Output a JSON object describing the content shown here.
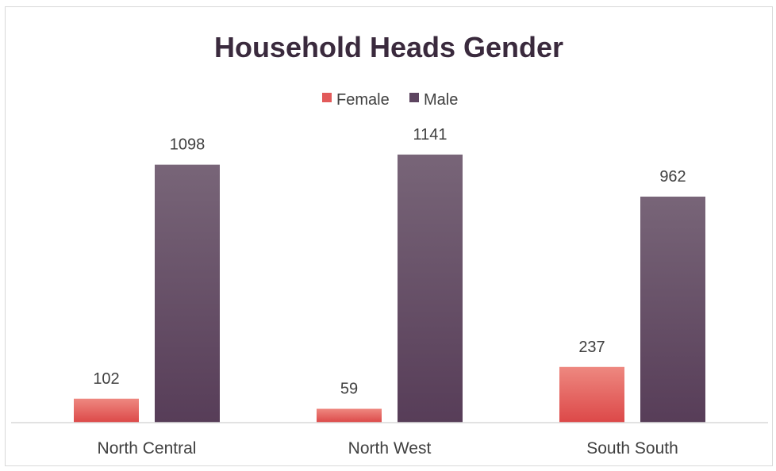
{
  "chart_data": {
    "type": "bar",
    "title": "Household Heads Gender",
    "categories": [
      "North Central",
      "North West",
      "South South"
    ],
    "series": [
      {
        "name": "Female",
        "values": [
          102,
          59,
          237
        ],
        "color": "#e25a5a"
      },
      {
        "name": "Male",
        "values": [
          1098,
          1141,
          962
        ],
        "color": "#5d4560"
      }
    ],
    "xlabel": "",
    "ylabel": "",
    "ylim": [
      0,
      1240
    ],
    "grid": false,
    "legend": "top-center",
    "data_labels": true
  }
}
